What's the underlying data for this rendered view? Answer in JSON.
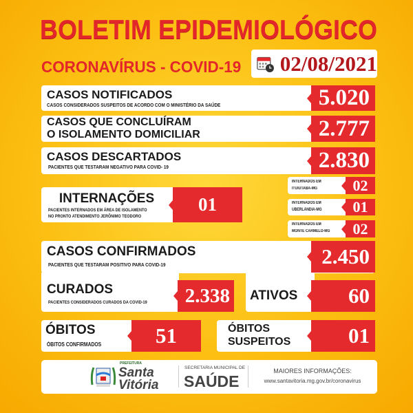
{
  "header": {
    "title": "BOLETIM EPIDEMIOLÓGICO",
    "subtitle": "CORONAVÍRUS - COVID-19",
    "date": "02/08/2021",
    "date_icon": "calendar-clock-icon"
  },
  "notificados": {
    "title": "CASOS NOTIFICADOS",
    "desc": "CASOS CONSIDERADOS SUSPEITOS DE ACORDO COM O MINISTÉRIO DA SAÚDE",
    "value": "5.020"
  },
  "isolamento": {
    "title_line1": "CASOS QUE CONCLUÍRAM",
    "title_line2": "O ISOLAMENTO DOMICILIAR",
    "value": "2.777"
  },
  "descartados": {
    "title": "CASOS DESCARTADOS",
    "desc": "PACIENTES QUE TESTARAM NEGATIVO PARA COVID- 19",
    "value": "2.830"
  },
  "internacoes": {
    "title": "INTERNAÇÕES",
    "desc_line1": "PACIENTES INTERNADOS EM ÁREA DE ISOLAMENTO",
    "desc_line2": "NO PRONTO ATENDIMENTO JERÔNIMO TEODORO",
    "value": "01",
    "locations": [
      {
        "line1": "INTERNADOS EM",
        "line2": "ITUIUTABA-MG",
        "value": "02"
      },
      {
        "line1": "INTERNADOS EM",
        "line2": "UBERLÂNDIA-MG",
        "value": "01"
      },
      {
        "line1": "INTERNADOS EM",
        "line2": "MONTE CARMELO-MG",
        "value": "02"
      }
    ]
  },
  "confirmados": {
    "title": "CASOS CONFIRMADOS",
    "desc": "PACIENTES QUE TESTARAM POSITIVO PARA COVID-19",
    "value": "2.450"
  },
  "curados": {
    "title": "CURADOS",
    "desc": "PACIENTES CONSIDERADOS CURADOS DA COVID-19",
    "value": "2.338"
  },
  "ativos": {
    "title": "ATIVOS",
    "value": "60"
  },
  "obitos": {
    "title": "ÓBITOS",
    "desc": "ÓBITOS CONFIRMADOS",
    "value": "51"
  },
  "suspeitos": {
    "title_line1": "ÓBITOS",
    "title_line2": "SUSPEITOS",
    "value": "01"
  },
  "footer": {
    "logo_small": "PREFEITURA",
    "logo_line1": "Santa",
    "logo_line2": "Vitória",
    "sec_small": "SECRETARIA MUNICIPAL DE",
    "sec_big": "SAÚDE",
    "info_title": "MAIORES INFORMAÇÕES:",
    "info_url": "www.santavitoria.mg.gov.br/coronavirus"
  },
  "colors": {
    "red": "#e52a2d",
    "title_red": "#e2262a",
    "yellow": "#fcbf12",
    "date_red": "#b3171b"
  }
}
